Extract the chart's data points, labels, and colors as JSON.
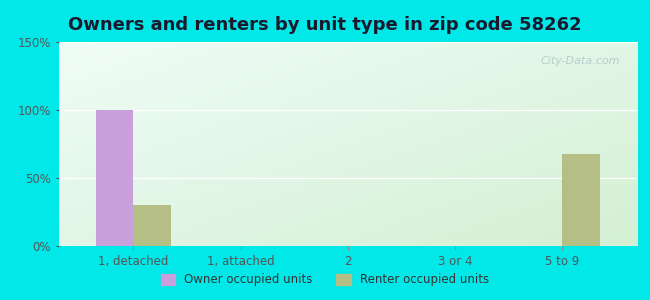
{
  "title": "Owners and renters by unit type in zip code 58262",
  "categories": [
    "1, detached",
    "1, attached",
    "2",
    "3 or 4",
    "5 to 9"
  ],
  "owner_values": [
    100,
    0,
    0,
    0,
    0
  ],
  "renter_values": [
    30,
    0,
    0,
    0,
    68
  ],
  "owner_color": "#c9a0dc",
  "renter_color": "#b5bf85",
  "ylim": [
    0,
    150
  ],
  "yticks": [
    0,
    50,
    100,
    150
  ],
  "ytick_labels": [
    "0%",
    "50%",
    "100%",
    "150%"
  ],
  "bar_width": 0.35,
  "background_outer": "#00e8e8",
  "background_inner_topleft": "#f0faf8",
  "background_inner_bottomright": "#d8f0d8",
  "title_fontsize": 13,
  "title_color": "#1a1a2e",
  "legend_owner": "Owner occupied units",
  "legend_renter": "Renter occupied units",
  "watermark": "City-Data.com",
  "tick_color": "#555555",
  "tick_fontsize": 8.5
}
